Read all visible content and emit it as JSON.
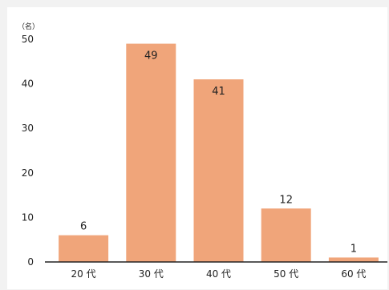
{
  "chart_data": {
    "type": "bar",
    "categories": [
      "20 代",
      "30 代",
      "40 代",
      "50 代",
      "60 代"
    ],
    "values": [
      6,
      49,
      41,
      12,
      1
    ],
    "ylim": [
      0,
      50
    ],
    "yticks": [
      0,
      10,
      20,
      30,
      40,
      50
    ],
    "unit_label": "（名）",
    "title": "",
    "xlabel": "",
    "ylabel": "",
    "bar_color": "#f0a57a",
    "axis_color": "#222222",
    "grid": false,
    "legend": "none"
  }
}
